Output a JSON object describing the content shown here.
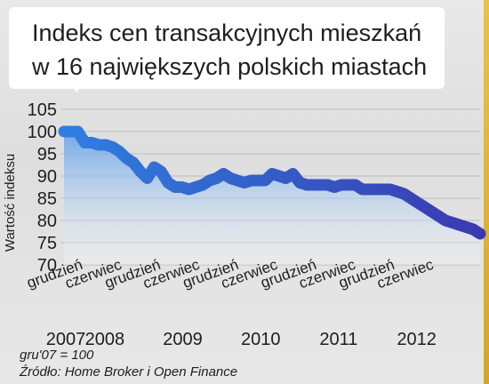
{
  "title_lines": [
    "Indeks cen transakcyjnych mieszkań",
    "w 16 największych polskich miastach"
  ],
  "footnote": "gru'07 = 100",
  "source": "Źródło: Home Broker i Open Finance",
  "colors": {
    "line_start": "#2f7fe0",
    "line_end": "#3a3ab0",
    "title_bg": "#ffffff",
    "accent": "#d4a52d"
  },
  "chart_data": {
    "type": "area",
    "ylabel": "Wartość indeksu",
    "ylim": [
      70,
      105
    ],
    "yticks": [
      70,
      75,
      80,
      85,
      90,
      95,
      100,
      105
    ],
    "grid": true,
    "x_tick_labels": [
      {
        "month": "grudzień",
        "year": "2007",
        "index": 0
      },
      {
        "month": "czerwiec",
        "year": "2008",
        "index": 6
      },
      {
        "month": "grudzień",
        "year": "",
        "index": 12
      },
      {
        "month": "czerwiec",
        "year": "2009",
        "index": 18
      },
      {
        "month": "grudzień",
        "year": "",
        "index": 24
      },
      {
        "month": "czerwiec",
        "year": "2010",
        "index": 30
      },
      {
        "month": "grudzień",
        "year": "",
        "index": 36
      },
      {
        "month": "czerwiec",
        "year": "2011",
        "index": 42
      },
      {
        "month": "grudzień",
        "year": "",
        "index": 48
      },
      {
        "month": "czerwiec",
        "year": "2012",
        "index": 54
      }
    ],
    "series": [
      {
        "values": [
          100,
          100,
          100,
          97.5,
          97.5,
          97,
          97,
          96.5,
          95.5,
          94,
          93,
          91,
          89.5,
          92,
          91,
          88.5,
          87.5,
          87.5,
          87,
          87.5,
          88,
          89,
          89.5,
          90.5,
          89.5,
          89,
          88.5,
          89,
          89,
          89,
          90.5,
          90,
          89.5,
          90.5,
          88.5,
          88,
          88,
          88,
          88,
          87.5,
          88,
          88,
          88,
          87,
          87,
          87,
          87,
          87,
          86.5,
          86,
          85,
          84,
          83,
          82,
          81,
          80,
          79.5,
          79,
          78.5,
          78,
          77
        ]
      }
    ]
  }
}
